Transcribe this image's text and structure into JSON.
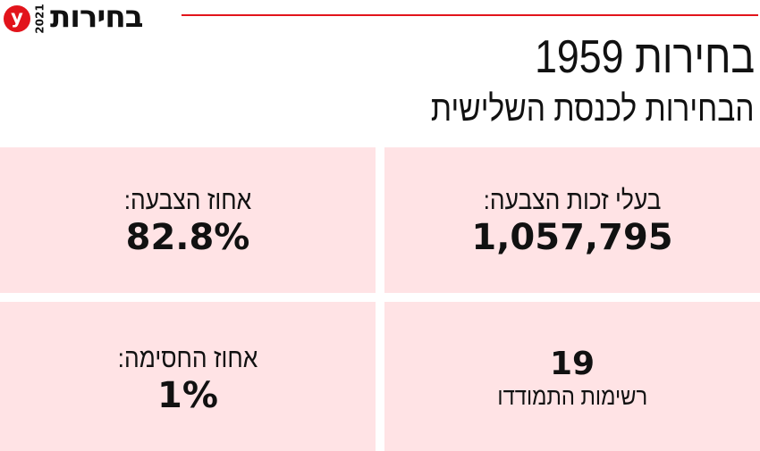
{
  "header": {
    "logo_letter": "y",
    "year": "2021",
    "brand_title": "בחירות",
    "accent_color": "#e2141b"
  },
  "title": "בחירות 1959",
  "subtitle": "הבחירות לכנסת השלישית",
  "stats": {
    "eligible_voters": {
      "label": "בעלי זכות הצבעה:",
      "value": "1,057,795"
    },
    "turnout": {
      "label": "אחוז הצבעה:",
      "value": "82.8%"
    },
    "lists": {
      "value": "19",
      "label": "רשימות התמודדו"
    },
    "threshold": {
      "label": "אחוז החסימה:",
      "value": "1%"
    }
  },
  "box_color": "#ffe3e5"
}
